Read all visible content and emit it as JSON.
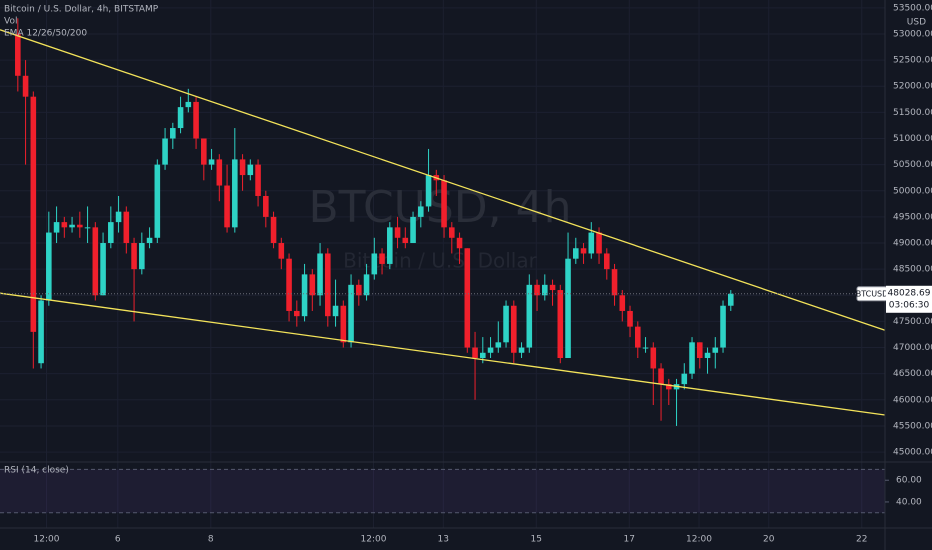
{
  "chart_data": {
    "type": "candlestick",
    "title": "Bitcoin / U.S. Dollar, 4h, BITSTAMP",
    "indicator_labels": [
      "Vol",
      "EMA 12/26/50/200"
    ],
    "currency": "USD",
    "watermark": "BTCUSD, 4h",
    "watermark_subtitle": "Bitcoin / U.S. Dollar",
    "symbol": "BTCUSD",
    "last_price": {
      "value": 48028.69,
      "label": "48028.69"
    },
    "countdown": "03:06:30",
    "up_color": "#2ed3c6",
    "down_color": "#f0202c",
    "open": [
      53000,
      52200,
      51800,
      46700,
      47900,
      49200,
      49400,
      49300,
      49350,
      49300,
      49300,
      48000,
      49000,
      49400,
      49600,
      49000,
      48500,
      49000,
      49100,
      50500,
      51000,
      51200,
      51600,
      51700,
      51000,
      50500,
      50600,
      50100,
      49300,
      50600,
      50300,
      50500,
      49900,
      49500,
      49000,
      48700,
      47700,
      47600,
      48400,
      48000,
      48800,
      47600,
      47800,
      47100,
      48200,
      48000,
      48400,
      48800,
      48600,
      49300,
      49100,
      49000,
      49500,
      49700,
      50300,
      50200,
      49300,
      49100,
      48900,
      47000,
      46800,
      46900,
      47000,
      47100,
      47800,
      46900,
      47000,
      48200,
      48000,
      48200,
      48100,
      46800,
      48700,
      48900,
      48800,
      49200,
      48800,
      48500,
      48000,
      47700,
      47400,
      47000,
      47000,
      46600,
      46300,
      46200,
      46300,
      46500,
      47100,
      46800,
      46900,
      47000,
      47800
    ],
    "high": [
      53300,
      52500,
      51900,
      48000,
      49600,
      49700,
      49500,
      49500,
      49600,
      49700,
      49400,
      49200,
      49700,
      49900,
      49700,
      49100,
      49200,
      49300,
      50600,
      51200,
      51300,
      51800,
      51950,
      51800,
      51000,
      50800,
      50700,
      50500,
      51200,
      50700,
      50600,
      50600,
      50000,
      49600,
      49100,
      48800,
      47900,
      48600,
      48500,
      49000,
      48900,
      48300,
      47900,
      48400,
      48300,
      48600,
      49100,
      48900,
      49400,
      49500,
      49300,
      49600,
      49800,
      50800,
      50400,
      50300,
      49400,
      49200,
      48900,
      47300,
      47200,
      47200,
      47500,
      47900,
      47900,
      47100,
      48400,
      48300,
      48400,
      48300,
      48200,
      49200,
      49100,
      49000,
      49400,
      49300,
      48900,
      48600,
      48100,
      47800,
      47500,
      47200,
      47100,
      46700,
      46400,
      46400,
      46700,
      47200,
      47100,
      47000,
      47200,
      47900,
      48100
    ],
    "low": [
      51900,
      50500,
      46600,
      46600,
      47800,
      49000,
      49100,
      49200,
      49100,
      49000,
      47900,
      48000,
      48900,
      49200,
      48800,
      47500,
      48400,
      48900,
      49000,
      50400,
      50800,
      51100,
      51500,
      50800,
      50200,
      50400,
      49800,
      49200,
      49200,
      50000,
      50200,
      49700,
      49300,
      48900,
      48500,
      47500,
      47400,
      47500,
      47700,
      47800,
      47400,
      47400,
      47000,
      47000,
      47800,
      47900,
      48300,
      48400,
      48500,
      48900,
      48900,
      49000,
      49300,
      49600,
      49900,
      49100,
      48800,
      48600,
      46900,
      46000,
      46700,
      46800,
      46900,
      47000,
      46700,
      46800,
      46900,
      47700,
      47900,
      47800,
      46700,
      46800,
      48600,
      48600,
      48700,
      48600,
      48300,
      47800,
      47500,
      47200,
      46800,
      46900,
      45900,
      45600,
      45900,
      45500,
      46200,
      46400,
      46600,
      46500,
      46600,
      46900,
      47700
    ],
    "close": [
      52200,
      51800,
      47300,
      47900,
      49200,
      49400,
      49300,
      49350,
      49300,
      49300,
      48000,
      49000,
      49400,
      49600,
      49000,
      48500,
      49000,
      49100,
      50500,
      51000,
      51200,
      51600,
      51700,
      51000,
      50500,
      50600,
      50100,
      49300,
      50600,
      50300,
      50500,
      49900,
      49500,
      49000,
      48700,
      47700,
      47600,
      48400,
      48000,
      48800,
      47600,
      47800,
      47100,
      48200,
      48000,
      48400,
      48800,
      48600,
      49300,
      49100,
      49000,
      49500,
      49700,
      50300,
      50200,
      49300,
      49100,
      48900,
      47000,
      46800,
      46900,
      47000,
      47100,
      47800,
      46900,
      47000,
      48200,
      48000,
      48200,
      48100,
      46800,
      48700,
      48900,
      48800,
      49200,
      48800,
      48500,
      48000,
      47700,
      47400,
      47000,
      47000,
      46600,
      46300,
      46200,
      46300,
      46500,
      47100,
      46800,
      46900,
      47000,
      47800,
      48028.69
    ],
    "trendlines": [
      {
        "color": "#f3e35a",
        "x": [
          -2.3,
          111.9
        ],
        "y": [
          53080,
          47330
        ]
      },
      {
        "color": "#f3e35a",
        "x": [
          -2.3,
          111.9
        ],
        "y": [
          48040,
          45710
        ]
      }
    ],
    "xlim": [
      -2.3,
      111.9
    ],
    "ylim": [
      44810,
      53650
    ],
    "xticks": [
      {
        "value": 3.7,
        "label": "12:00"
      },
      {
        "value": 12.9,
        "label": "6"
      },
      {
        "value": 24.9,
        "label": "8"
      },
      {
        "value": 45.9,
        "label": "12:00"
      },
      {
        "value": 54.9,
        "label": "13"
      },
      {
        "value": 66.9,
        "label": "15"
      },
      {
        "value": 78.9,
        "label": "17"
      },
      {
        "value": 87.9,
        "label": "12:00"
      },
      {
        "value": 96.9,
        "label": "20"
      },
      {
        "value": 108.9,
        "label": "22"
      }
    ],
    "yticks": [
      {
        "value": 45000,
        "label": "45000.00"
      },
      {
        "value": 45500,
        "label": "45500.00"
      },
      {
        "value": 46000,
        "label": "46000.00"
      },
      {
        "value": 46500,
        "label": "46500.00"
      },
      {
        "value": 47000,
        "label": "47000.00"
      },
      {
        "value": 47500,
        "label": "47500.00"
      },
      {
        "value": 48000,
        "label": "48000.00"
      },
      {
        "value": 48500,
        "label": "48500.00"
      },
      {
        "value": 49000,
        "label": "49000.00"
      },
      {
        "value": 49500,
        "label": "49500.00"
      },
      {
        "value": 50000,
        "label": "50000.00"
      },
      {
        "value": 50500,
        "label": "50500.00"
      },
      {
        "value": 51000,
        "label": "51000.00"
      },
      {
        "value": 51500,
        "label": "51500.00"
      },
      {
        "value": 52000,
        "label": "52000.00"
      },
      {
        "value": 52500,
        "label": "52500.00"
      },
      {
        "value": 53000,
        "label": "53000.00"
      },
      {
        "value": 53500,
        "label": "53500.00"
      }
    ],
    "rsi": {
      "label": "RSI (14, close)",
      "ylim": [
        16,
        76.8
      ],
      "yticks": [
        {
          "value": 40,
          "label": "40.00"
        },
        {
          "value": 60,
          "label": "60.00"
        }
      ],
      "band": [
        30,
        70
      ],
      "color": "#7e57c2"
    }
  }
}
